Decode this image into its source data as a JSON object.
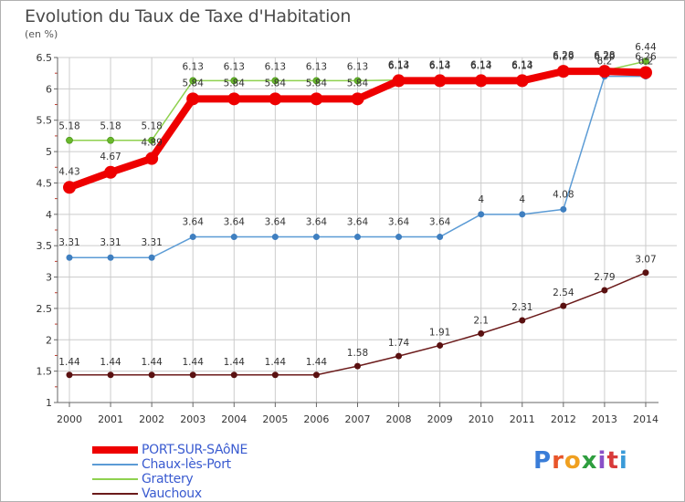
{
  "header": {
    "title": "Evolution du Taux de Taxe d'Habitation",
    "unit": "(en %)"
  },
  "logo": {
    "text": "Proxiti"
  },
  "colors": {
    "PORT-SUR-SAôNE": "#ee0000",
    "Chaux-lès-Port": "#5b9bd5",
    "Grattery": "#8fd14f",
    "Vauchoux": "#6b1a1a",
    "grid": "#cccccc",
    "axis": "#666666",
    "minor_tick": "#c0392b"
  },
  "chart_data": {
    "type": "line",
    "title": "Evolution du Taux de Taxe d'Habitation",
    "ylabel": "(en %)",
    "xlabel": "",
    "x": [
      "2000",
      "2001",
      "2002",
      "2003",
      "2004",
      "2005",
      "2006",
      "2007",
      "2008",
      "2009",
      "2010",
      "2011",
      "2012",
      "2013",
      "2014"
    ],
    "ylim": [
      1,
      6.5
    ],
    "yticks": [
      "1",
      "1.5",
      "2",
      "2.5",
      "3",
      "3.5",
      "4",
      "4.5",
      "5",
      "5.5",
      "6",
      "6.5"
    ],
    "grid": true,
    "legend_position": "bottom-left",
    "series": [
      {
        "name": "PORT-SUR-SAôNE",
        "values": [
          4.43,
          4.67,
          4.89,
          5.84,
          5.84,
          5.84,
          5.84,
          5.84,
          6.13,
          6.13,
          6.13,
          6.13,
          6.28,
          6.28,
          6.26
        ],
        "labels": [
          "4.43",
          "4.67",
          "4.89",
          "5.84",
          "5.84",
          "5.84",
          "5.84",
          "5.84",
          "6.13",
          "6.13",
          "6.13",
          "6.13",
          "6.28",
          "6.28",
          "6.26"
        ]
      },
      {
        "name": "Chaux-lès-Port",
        "values": [
          3.31,
          3.31,
          3.31,
          3.64,
          3.64,
          3.64,
          3.64,
          3.64,
          3.64,
          3.64,
          4,
          4,
          4.08,
          6.2,
          6.2
        ],
        "labels": [
          "3.31",
          "3.31",
          "3.31",
          "3.64",
          "3.64",
          "3.64",
          "3.64",
          "3.64",
          "3.64",
          "3.64",
          "4",
          "4",
          "4.08",
          "6.2",
          "6.2"
        ]
      },
      {
        "name": "Grattery",
        "values": [
          5.18,
          5.18,
          5.18,
          6.13,
          6.13,
          6.13,
          6.13,
          6.13,
          6.14,
          6.14,
          6.14,
          6.14,
          6.29,
          6.29,
          6.44
        ],
        "labels": [
          "5.18",
          "5.18",
          "5.18",
          "6.13",
          "6.13",
          "6.13",
          "6.13",
          "6.13",
          "6.14",
          "6.14",
          "6.14",
          "6.14",
          "6.29",
          "6.29",
          "6.44"
        ]
      },
      {
        "name": "Vauchoux",
        "values": [
          1.44,
          1.44,
          1.44,
          1.44,
          1.44,
          1.44,
          1.44,
          1.58,
          1.74,
          1.91,
          2.1,
          2.31,
          2.54,
          2.79,
          3.07
        ],
        "labels": [
          "1.44",
          "1.44",
          "1.44",
          "1.44",
          "1.44",
          "1.44",
          "1.44",
          "1.58",
          "1.74",
          "1.91",
          "2.1",
          "2.31",
          "2.54",
          "2.79",
          "3.07"
        ]
      }
    ]
  }
}
